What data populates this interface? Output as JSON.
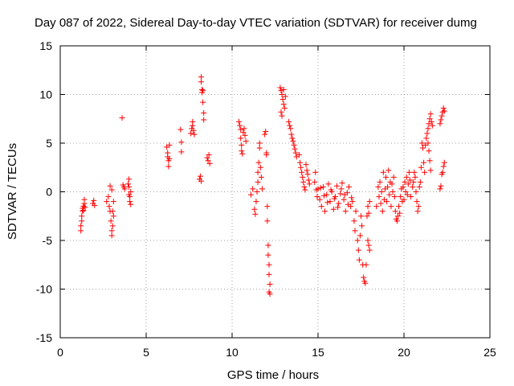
{
  "chart_data": {
    "type": "scatter",
    "title": "Day 087 of 2022, Sidereal Day-to-day VTEC variation (SDTVAR) for receiver dumg",
    "xlabel": "GPS time / hours",
    "ylabel": "SDTVAR / TECUs",
    "xlim": [
      0,
      25
    ],
    "ylim": [
      -15,
      15
    ],
    "xticks": [
      0,
      5,
      10,
      15,
      20,
      25
    ],
    "yticks": [
      -15,
      -10,
      -5,
      0,
      5,
      10,
      15
    ],
    "grid": true,
    "marker": "plus",
    "marker_color": "#ff0000",
    "series": [
      {
        "name": "SDTVAR",
        "points": [
          [
            1.2,
            -4.0
          ],
          [
            1.2,
            -3.5
          ],
          [
            1.25,
            -3.0
          ],
          [
            1.25,
            -2.5
          ],
          [
            1.3,
            -2.0
          ],
          [
            1.3,
            -1.7
          ],
          [
            1.35,
            -1.5
          ],
          [
            1.35,
            -1.9
          ],
          [
            1.4,
            -1.2
          ],
          [
            1.4,
            -0.8
          ],
          [
            1.45,
            -1.6
          ],
          [
            1.9,
            -1.2
          ],
          [
            1.95,
            -0.9
          ],
          [
            2.0,
            -1.4
          ],
          [
            2.7,
            -1.0
          ],
          [
            2.8,
            -0.5
          ],
          [
            2.85,
            -1.5
          ],
          [
            2.9,
            -2.0
          ],
          [
            2.9,
            0.6
          ],
          [
            2.95,
            -3.0
          ],
          [
            3.0,
            -4.5
          ],
          [
            3.0,
            -4.0
          ],
          [
            3.05,
            -3.5
          ],
          [
            3.05,
            -2.0
          ],
          [
            3.1,
            -2.5
          ],
          [
            3.1,
            -1.0
          ],
          [
            3.0,
            0.2
          ],
          [
            3.6,
            7.6
          ],
          [
            3.65,
            0.7
          ],
          [
            3.7,
            0.5
          ],
          [
            3.75,
            0.3
          ],
          [
            3.95,
            0.8
          ],
          [
            4.0,
            0.5
          ],
          [
            4.0,
            -0.3
          ],
          [
            4.05,
            -0.5
          ],
          [
            4.05,
            -1.0
          ],
          [
            4.1,
            -1.3
          ],
          [
            4.1,
            0.0
          ],
          [
            4.0,
            1.3
          ],
          [
            6.2,
            4.6
          ],
          [
            6.25,
            4.0
          ],
          [
            6.25,
            3.6
          ],
          [
            6.3,
            3.2
          ],
          [
            6.3,
            2.6
          ],
          [
            6.35,
            3.4
          ],
          [
            6.35,
            4.8
          ],
          [
            7.0,
            6.4
          ],
          [
            7.05,
            5.1
          ],
          [
            7.05,
            4.1
          ],
          [
            7.6,
            6.0
          ],
          [
            7.65,
            6.5
          ],
          [
            7.7,
            6.8
          ],
          [
            7.7,
            7.2
          ],
          [
            7.75,
            6.3
          ],
          [
            7.8,
            5.9
          ],
          [
            8.1,
            1.3
          ],
          [
            8.15,
            1.6
          ],
          [
            8.2,
            1.1
          ],
          [
            8.2,
            11.8
          ],
          [
            8.2,
            11.3
          ],
          [
            8.25,
            10.5
          ],
          [
            8.25,
            10.2
          ],
          [
            8.3,
            10.4
          ],
          [
            8.3,
            9.2
          ],
          [
            8.35,
            8.1
          ],
          [
            8.35,
            7.4
          ],
          [
            8.55,
            3.5
          ],
          [
            8.6,
            3.2
          ],
          [
            8.65,
            3.8
          ],
          [
            8.7,
            2.9
          ],
          [
            10.4,
            7.2
          ],
          [
            10.45,
            6.8
          ],
          [
            10.5,
            6.4
          ],
          [
            10.5,
            5.5
          ],
          [
            10.55,
            4.8
          ],
          [
            10.55,
            4.2
          ],
          [
            10.6,
            3.9
          ],
          [
            10.65,
            6.1
          ],
          [
            10.7,
            6.5
          ],
          [
            10.75,
            5.8
          ],
          [
            10.8,
            5.2
          ],
          [
            11.1,
            -0.3
          ],
          [
            11.2,
            0.3
          ],
          [
            11.3,
            -1.8
          ],
          [
            11.35,
            -2.3
          ],
          [
            11.4,
            -1.0
          ],
          [
            11.45,
            0.0
          ],
          [
            11.5,
            1.0
          ],
          [
            11.5,
            2.0
          ],
          [
            11.55,
            3.0
          ],
          [
            11.6,
            4.5
          ],
          [
            11.6,
            5.0
          ],
          [
            11.65,
            2.5
          ],
          [
            11.7,
            1.5
          ],
          [
            11.75,
            0.3
          ],
          [
            11.9,
            5.9
          ],
          [
            11.95,
            6.2
          ],
          [
            12.0,
            4.0
          ],
          [
            12.0,
            3.8
          ],
          [
            12.05,
            -1.5
          ],
          [
            12.05,
            -3.0
          ],
          [
            12.1,
            -5.5
          ],
          [
            12.1,
            -6.5
          ],
          [
            12.15,
            -7.5
          ],
          [
            12.15,
            -8.5
          ],
          [
            12.2,
            -9.5
          ],
          [
            12.2,
            -10.5
          ],
          [
            12.15,
            -10.3
          ],
          [
            12.8,
            10.7
          ],
          [
            12.85,
            10.4
          ],
          [
            12.9,
            10.0
          ],
          [
            12.95,
            9.5
          ],
          [
            13.0,
            9.0
          ],
          [
            13.05,
            8.6
          ],
          [
            12.85,
            8.2
          ],
          [
            12.9,
            7.8
          ],
          [
            13.0,
            10.5
          ],
          [
            13.1,
            9.8
          ],
          [
            13.3,
            7.2
          ],
          [
            13.35,
            6.8
          ],
          [
            13.4,
            6.5
          ],
          [
            13.45,
            5.9
          ],
          [
            13.5,
            5.5
          ],
          [
            13.55,
            5.2
          ],
          [
            13.6,
            4.8
          ],
          [
            13.65,
            4.4
          ],
          [
            13.7,
            4.0
          ],
          [
            13.75,
            3.6
          ],
          [
            13.9,
            3.8
          ],
          [
            13.95,
            3.0
          ],
          [
            14.0,
            2.5
          ],
          [
            14.05,
            2.0
          ],
          [
            14.1,
            1.5
          ],
          [
            14.15,
            1.0
          ],
          [
            14.2,
            0.5
          ],
          [
            14.25,
            0.2
          ],
          [
            14.3,
            2.8
          ],
          [
            14.35,
            2.2
          ],
          [
            14.4,
            1.8
          ],
          [
            14.45,
            1.2
          ],
          [
            14.5,
            0.8
          ],
          [
            14.8,
            1.0
          ],
          [
            14.85,
            2.0
          ],
          [
            14.9,
            0.2
          ],
          [
            14.95,
            -0.5
          ],
          [
            15.0,
            0.3
          ],
          [
            15.1,
            -0.8
          ],
          [
            15.2,
            -1.5
          ],
          [
            15.3,
            0.5
          ],
          [
            15.4,
            -2.0
          ],
          [
            15.5,
            -0.3
          ],
          [
            15.6,
            0.8
          ],
          [
            15.7,
            -1.0
          ],
          [
            15.8,
            0.0
          ],
          [
            15.9,
            -1.8
          ],
          [
            16.0,
            -0.5
          ],
          [
            16.1,
            0.6
          ],
          [
            16.2,
            -1.2
          ],
          [
            16.3,
            -0.2
          ],
          [
            16.4,
            0.9
          ],
          [
            16.5,
            -0.8
          ],
          [
            16.6,
            -2.0
          ],
          [
            16.7,
            -0.1
          ],
          [
            16.8,
            0.5
          ],
          [
            16.9,
            -1.5
          ],
          [
            15.15,
            0.4
          ],
          [
            15.35,
            -0.4
          ],
          [
            15.55,
            -1.1
          ],
          [
            15.75,
            0.2
          ],
          [
            15.95,
            -0.7
          ],
          [
            16.15,
            -1.6
          ],
          [
            16.35,
            0.3
          ],
          [
            16.55,
            -0.3
          ],
          [
            16.75,
            -1.3
          ],
          [
            16.95,
            -0.6
          ],
          [
            17.0,
            -1.0
          ],
          [
            17.1,
            -3.0
          ],
          [
            17.15,
            -4.0
          ],
          [
            17.2,
            -2.0
          ],
          [
            17.3,
            -5.0
          ],
          [
            17.35,
            -6.0
          ],
          [
            17.4,
            -7.0
          ],
          [
            17.45,
            -4.5
          ],
          [
            17.5,
            -2.5
          ],
          [
            17.55,
            -3.5
          ],
          [
            17.6,
            -7.5
          ],
          [
            17.65,
            -8.8
          ],
          [
            17.7,
            -9.2
          ],
          [
            17.75,
            -9.4
          ],
          [
            17.8,
            -7.5
          ],
          [
            17.85,
            -2.5
          ],
          [
            17.9,
            -1.5
          ],
          [
            17.95,
            -2.2
          ],
          [
            18.0,
            -1.0
          ],
          [
            17.9,
            -5.0
          ],
          [
            17.95,
            -5.5
          ],
          [
            18.0,
            -6.0
          ],
          [
            18.4,
            -1.5
          ],
          [
            18.5,
            0.5
          ],
          [
            18.55,
            -0.5
          ],
          [
            18.6,
            1.0
          ],
          [
            18.65,
            -1.2
          ],
          [
            18.7,
            0.0
          ],
          [
            18.75,
            -2.0
          ],
          [
            18.8,
            2.0
          ],
          [
            18.85,
            -0.8
          ],
          [
            18.9,
            0.3
          ],
          [
            18.95,
            1.5
          ],
          [
            19.0,
            -1.0
          ],
          [
            19.05,
            0.5
          ],
          [
            19.1,
            2.2
          ],
          [
            19.15,
            -0.3
          ],
          [
            19.2,
            1.0
          ],
          [
            19.25,
            -1.5
          ],
          [
            19.3,
            0.8
          ],
          [
            19.35,
            0.0
          ],
          [
            19.4,
            1.5
          ],
          [
            19.45,
            -0.5
          ],
          [
            19.5,
            -2.0
          ],
          [
            19.55,
            -2.8
          ],
          [
            19.6,
            -3.0
          ],
          [
            19.65,
            -2.5
          ],
          [
            19.7,
            -1.5
          ],
          [
            19.75,
            -2.2
          ],
          [
            19.8,
            -0.5
          ],
          [
            19.85,
            0.3
          ],
          [
            19.9,
            -1.0
          ],
          [
            19.95,
            0.5
          ],
          [
            20.0,
            -0.8
          ],
          [
            20.05,
            1.0
          ],
          [
            20.1,
            0.0
          ],
          [
            20.15,
            1.5
          ],
          [
            20.2,
            -0.3
          ],
          [
            20.25,
            0.8
          ],
          [
            20.3,
            2.0
          ],
          [
            20.35,
            1.2
          ],
          [
            20.4,
            -0.5
          ],
          [
            20.5,
            0.5
          ],
          [
            20.55,
            1.0
          ],
          [
            20.6,
            2.0
          ],
          [
            20.65,
            1.5
          ],
          [
            20.7,
            0.0
          ],
          [
            20.75,
            -1.0
          ],
          [
            20.8,
            -2.0
          ],
          [
            20.85,
            -1.5
          ],
          [
            20.9,
            0.5
          ],
          [
            20.95,
            1.0
          ],
          [
            21.0,
            2.5
          ],
          [
            21.05,
            5.0
          ],
          [
            21.1,
            4.5
          ],
          [
            21.15,
            3.0
          ],
          [
            21.2,
            2.0
          ],
          [
            21.25,
            4.8
          ],
          [
            21.3,
            5.5
          ],
          [
            21.35,
            6.0
          ],
          [
            21.4,
            6.5
          ],
          [
            21.45,
            7.0
          ],
          [
            21.5,
            7.5
          ],
          [
            21.55,
            8.0
          ],
          [
            21.6,
            7.2
          ],
          [
            21.65,
            6.8
          ],
          [
            21.4,
            5.0
          ],
          [
            21.45,
            4.2
          ],
          [
            21.5,
            3.2
          ],
          [
            21.55,
            2.2
          ],
          [
            22.1,
            0.3
          ],
          [
            22.15,
            0.6
          ],
          [
            22.2,
            1.8
          ],
          [
            22.25,
            2.0
          ],
          [
            22.3,
            2.6
          ],
          [
            22.35,
            3.0
          ],
          [
            22.1,
            7.0
          ],
          [
            22.15,
            7.4
          ],
          [
            22.2,
            7.8
          ],
          [
            22.25,
            8.2
          ],
          [
            22.3,
            8.6
          ],
          [
            22.35,
            8.3
          ]
        ]
      }
    ]
  }
}
